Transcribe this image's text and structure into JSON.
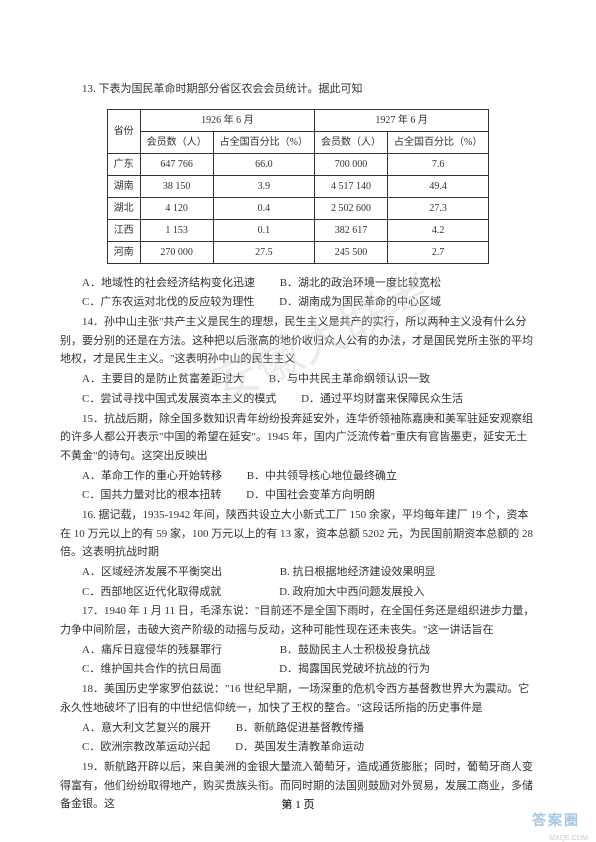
{
  "q13": {
    "stem": "13. 下表为国民革命时期部分省区农会会员统计。据此可知",
    "table": {
      "header_province": "省份",
      "header_1926": "1926 年 6 月",
      "header_1927": "1927 年 6 月",
      "sub_members": "会员数（人）",
      "sub_percent": "占全国百分比（%）",
      "rows": [
        [
          "广东",
          "647 766",
          "66.0",
          "700 000",
          "7.6"
        ],
        [
          "湖南",
          "38 150",
          "3.9",
          "4 517 140",
          "49.4"
        ],
        [
          "湖北",
          "4 120",
          "0.4",
          "2 502 600",
          "27.3"
        ],
        [
          "江西",
          "1 153",
          "0.1",
          "382 617",
          "4.2"
        ],
        [
          "河南",
          "270 000",
          "27.5",
          "245 500",
          "2.7"
        ]
      ]
    },
    "optA": "A．地域性的社会经济结构变化迅速",
    "optB": "B．湖北的政治环境一度比较宽松",
    "optC": "C．广东农运对北伐的反应较为理性",
    "optD": "D．湖南成为国民革命的中心区域"
  },
  "q14": {
    "stem": "14．孙中山主张\"共产主义是民生的理想，民生主义是共产的实行，所以两种主义没有什么分别，要分别的还是在方法。这种把以后涨高的地价收归众人公有的办法，才是国民党所主张的平均地权，才是民生主义。\"这表明孙中山的民生主义",
    "optA": "A．主要目的是防止贫富差距过大",
    "optB": "B．与中共民主革命纲领认识一致",
    "optC": "C．尝试寻找中国式发展资本主义的模式",
    "optD": "D．通过平均财富来保障民众生活"
  },
  "q15": {
    "stem": "15．抗战后期，除全国多数知识青年纷纷投奔延安外，连华侨领袖陈嘉庚和美军驻延安观察组的许多人都公开表示\"中国的希望在延安\"。1945 年，国内广泛流传着\"重庆有官皆墨吏，延安无土不黄金\"的诗句。这突出反映出",
    "optA": "A．革命工作的重心开始转移",
    "optB": "B．中共领导核心地位最终确立",
    "optC": "C．国共力量对比的根本扭转",
    "optD": "D．中国社会变革方向明朗"
  },
  "q16": {
    "stem": "16. 据记载，1935-1942 年间，陕西共设立大小新式工厂 150 余家，平均每年建厂 19 个，资本在 10 万元以上的有 59 家，100 万元以上的有 13 家，资本总额 5202 元，为民国前期资本总额的 28 倍。这表明抗战时期",
    "optA": "A．区域经济发展不平衡突出",
    "optB": "B. 抗日根据地经济建设效果明显",
    "optC": "C．西部地区近代化取得成就",
    "optD": "D. 政府加大中西问题发展投入"
  },
  "q17": {
    "stem": "17．1940 年 1 月 11 日，毛泽东说：\"目前还不是全国下雨时，在全国任务还是组织进步力量，力争中间阶层，击破大资产阶级的动摇与反动，这种可能性现在还未丧失。\"这一讲话旨在",
    "optA": "A．痛斥日寇侵华的残暴罪行",
    "optB": "B．鼓励民主人士积极投身抗战",
    "optC": "C．维护国共合作的抗日局面",
    "optD": "D．揭露国民党破坏抗战的行为"
  },
  "q18": {
    "stem": "18．美国历史学家罗伯兹说：\"16 世纪早期，一场深重的危机令西方基督教世界大为震动。它永久性地破坏了旧有的中世纪信仰统一，加快了王权的整合。\"这段话所指的历史事件是",
    "optA": "A．意大利文艺复兴的展开",
    "optB": "B．新航路促进基督教传播",
    "optC": "C．欧洲宗教改革运动兴起",
    "optD": "D．英国发生清教革命运动"
  },
  "q19": {
    "stem": "19．新航路开辟以后，来自美洲的金银大量流入葡萄牙，造成通货膨胀；同时，葡萄牙商人变得富有，他们纷纷取得地产，购买贵族头衔。而同时期的法国则鼓励对外贸易，发展工商业，多储备金银。这"
  },
  "footer": "第 1 页",
  "watermark": "安徽大联考",
  "corner": "答案圈",
  "corner_sub": "MXQE.COM"
}
